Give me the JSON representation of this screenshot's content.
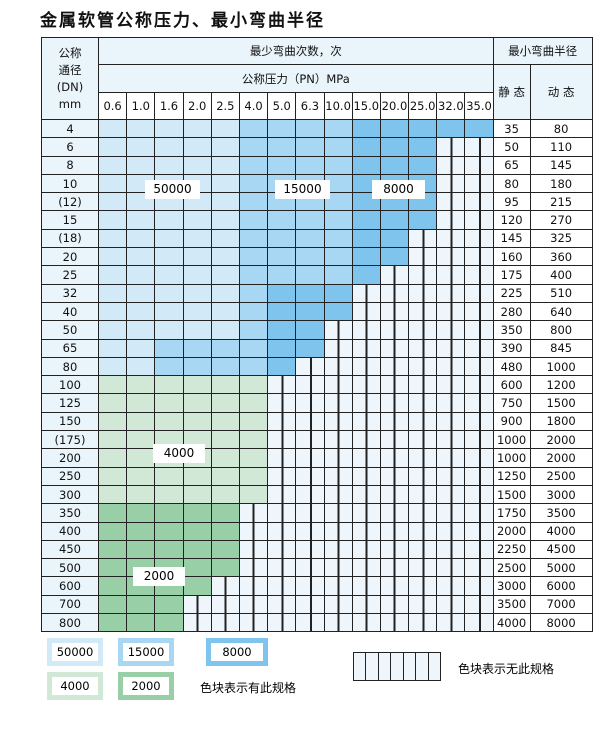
{
  "title": "金属软管公称压力、最小弯曲半径",
  "header": {
    "dn_label": [
      "公称",
      "通径",
      "(DN)",
      "mm"
    ],
    "cycles": "最少弯曲次数，次",
    "pressure": "公称压力（PN）MPa",
    "radius": "最小弯曲半径",
    "static": "静 态",
    "dynamic": "动 态",
    "pressures": [
      "0.6",
      "1.0",
      "1.6",
      "2.0",
      "2.5",
      "4.0",
      "5.0",
      "6.3",
      "10.0",
      "15.0",
      "20.0",
      "25.0",
      "32.0",
      "35.0"
    ]
  },
  "colors": {
    "50000": "#d2e9f8",
    "15000": "#a8d7f3",
    "8000": "#7fc4ec",
    "4000": "#d2e8d6",
    "2000": "#98cfa6",
    "none": "#eef6fb"
  },
  "rows": [
    {
      "dn": "4",
      "cells": "LLLLLMMMMDDDDD",
      "static": "35",
      "dynamic": "80"
    },
    {
      "dn": "6",
      "cells": "LLLLLMMMMDDD--",
      "static": "50",
      "dynamic": "110"
    },
    {
      "dn": "8",
      "cells": "LLLLLMMMMDDD--",
      "static": "65",
      "dynamic": "145"
    },
    {
      "dn": "10",
      "cells": "LLLLLMMMMDDD--",
      "static": "80",
      "dynamic": "180"
    },
    {
      "dn": "(12)",
      "cells": "LLLLLMMMMDDD--",
      "static": "95",
      "dynamic": "215"
    },
    {
      "dn": "15",
      "cells": "LLLLLMMMMDDD--",
      "static": "120",
      "dynamic": "270"
    },
    {
      "dn": "(18)",
      "cells": "LLLLLMMMMDD---",
      "static": "145",
      "dynamic": "325"
    },
    {
      "dn": "20",
      "cells": "LLLLLMMMMDD---",
      "static": "160",
      "dynamic": "360"
    },
    {
      "dn": "25",
      "cells": "LLLLLMMMMD----",
      "static": "175",
      "dynamic": "400"
    },
    {
      "dn": "32",
      "cells": "LLLLLMDDD-----",
      "static": "225",
      "dynamic": "510"
    },
    {
      "dn": "40",
      "cells": "LLLLLMDDD-----",
      "static": "280",
      "dynamic": "640"
    },
    {
      "dn": "50",
      "cells": "LLLLLMDD------",
      "static": "350",
      "dynamic": "800"
    },
    {
      "dn": "65",
      "cells": "LLMMMMDD------",
      "static": "390",
      "dynamic": "845"
    },
    {
      "dn": "80",
      "cells": "LLMMMMD-------",
      "static": "480",
      "dynamic": "1000"
    },
    {
      "dn": "100",
      "cells": "GGGGGG--------",
      "static": "600",
      "dynamic": "1200"
    },
    {
      "dn": "125",
      "cells": "GGGGGG--------",
      "static": "750",
      "dynamic": "1500"
    },
    {
      "dn": "150",
      "cells": "GGGGGG--------",
      "static": "900",
      "dynamic": "1800"
    },
    {
      "dn": "(175)",
      "cells": "GGGGGG--------",
      "static": "1000",
      "dynamic": "2000"
    },
    {
      "dn": "200",
      "cells": "GGGGGG--------",
      "static": "1000",
      "dynamic": "2000"
    },
    {
      "dn": "250",
      "cells": "GGGGGG--------",
      "static": "1250",
      "dynamic": "2500"
    },
    {
      "dn": "300",
      "cells": "GGGGGG--------",
      "static": "1500",
      "dynamic": "3000"
    },
    {
      "dn": "350",
      "cells": "HHHHH---------",
      "static": "1750",
      "dynamic": "3500"
    },
    {
      "dn": "400",
      "cells": "HHHHH---------",
      "static": "2000",
      "dynamic": "4000"
    },
    {
      "dn": "450",
      "cells": "HHHHH---------",
      "static": "2250",
      "dynamic": "4500"
    },
    {
      "dn": "500",
      "cells": "HHHHH---------",
      "static": "2500",
      "dynamic": "5000"
    },
    {
      "dn": "600",
      "cells": "HHHH----------",
      "static": "3000",
      "dynamic": "6000"
    },
    {
      "dn": "700",
      "cells": "HHH-----------",
      "static": "3500",
      "dynamic": "7000"
    },
    {
      "dn": "800",
      "cells": "HHH-----------",
      "static": "4000",
      "dynamic": "8000"
    }
  ],
  "zone_labels": {
    "z50000": "50000",
    "z15000": "15000",
    "z8000": "8000",
    "z4000": "4000",
    "z2000": "2000"
  },
  "legend": {
    "items": [
      "50000",
      "15000",
      "8000",
      "4000",
      "2000"
    ],
    "has_spec": "色块表示有此规格",
    "no_spec": "色块表示无此规格"
  }
}
